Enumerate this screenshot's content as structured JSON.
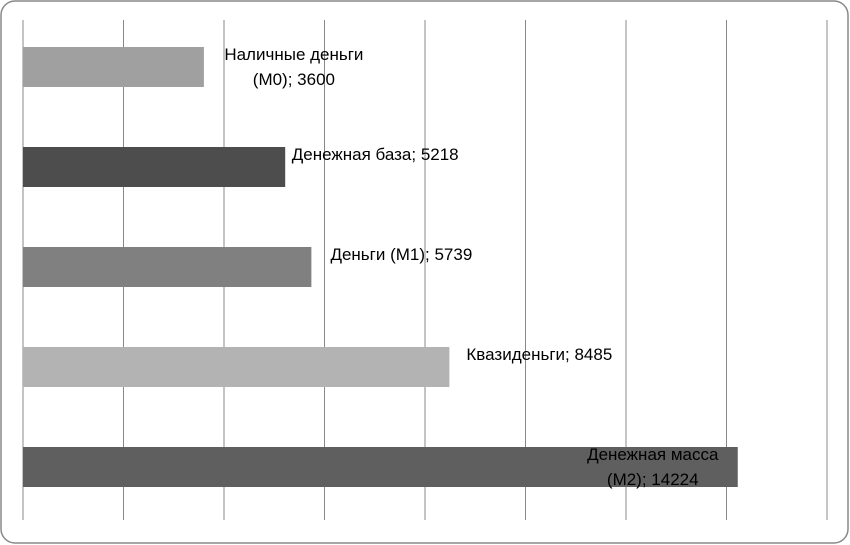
{
  "chart_data": {
    "type": "bar",
    "orientation": "horizontal",
    "values": [
      3600,
      5218,
      5739,
      8485,
      14224
    ],
    "value_labels": [
      "Наличные деньги (М0); 3600",
      "Денежная база; 5218",
      "Деньги (М1); 5739",
      "Квазиденьги; 8485",
      "Денежная масса (М2); 14224"
    ],
    "colors": [
      "#a0a0a0",
      "#4d4d4d",
      "#808080",
      "#b3b3b3",
      "#5f5f5f"
    ],
    "xlim": [
      0,
      16000
    ],
    "xticks": [
      0,
      2000,
      4000,
      6000,
      8000,
      10000,
      12000,
      14000,
      16000
    ],
    "grid": true
  }
}
